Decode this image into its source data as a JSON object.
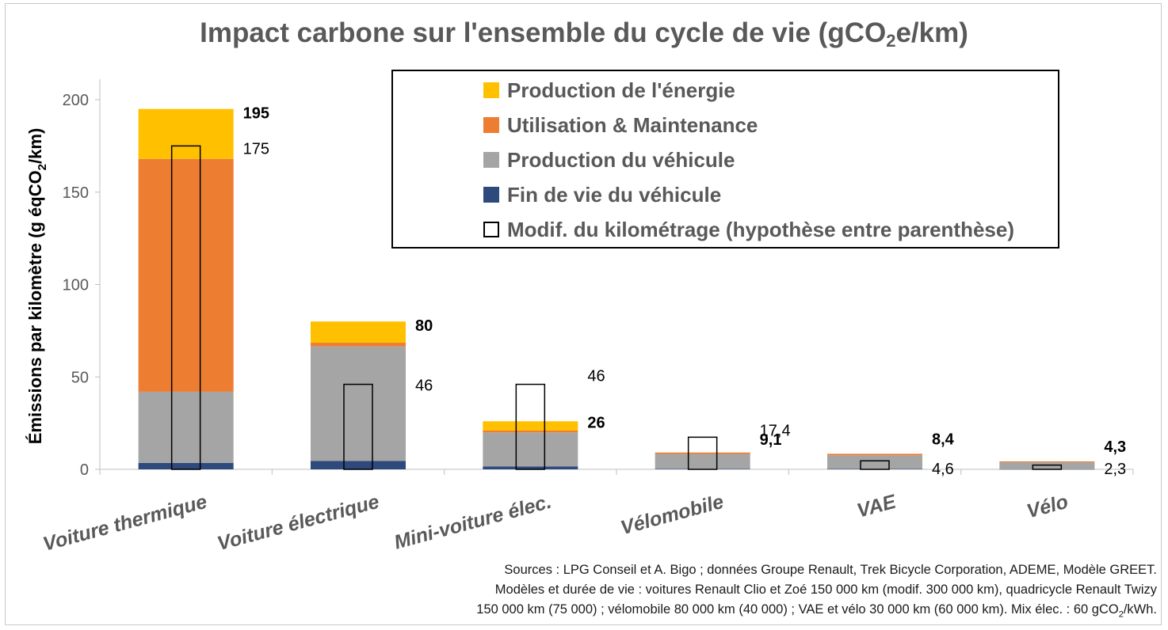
{
  "chart_data": {
    "type": "bar",
    "stacked": true,
    "title_prefix": "Impact carbone sur l'ensemble du cycle de vie (gCO",
    "title_sub": "2",
    "title_suffix": "e/km)",
    "ylabel_prefix": "Émissions par kilomètre (g éqCO",
    "ylabel_sub": "2",
    "ylabel_suffix": "/km)",
    "ylim": [
      0,
      210
    ],
    "yticks": [
      "0",
      "50",
      "100",
      "150",
      "200"
    ],
    "ytick_values": [
      0,
      50,
      100,
      150,
      200
    ],
    "categories": [
      "Voiture thermique",
      "Voiture électrique",
      "Mini-voiture élec.",
      "Vélomobile",
      "VAE",
      "Vélo"
    ],
    "series": [
      {
        "name": "Fin de vie du véhicule",
        "color": "#2e4a7d",
        "values": [
          3.5,
          4.5,
          1.5,
          0.3,
          0.3,
          0.1
        ]
      },
      {
        "name": "Production du véhicule",
        "color": "#a5a5a5",
        "values": [
          38.5,
          62,
          18.5,
          8,
          7.3,
          3.7
        ]
      },
      {
        "name": "Utilisation & Maintenance",
        "color": "#ed7d31",
        "values": [
          126,
          2,
          1,
          0.8,
          0.8,
          0.5
        ]
      },
      {
        "name": "Production de l'énergie",
        "color": "#ffc000",
        "values": [
          27,
          11.5,
          5,
          0,
          0,
          0
        ]
      }
    ],
    "totals": [
      195,
      80,
      26,
      9.1,
      8.4,
      4.3
    ],
    "total_labels": [
      "195",
      "80",
      "26",
      "9,1",
      "8,4",
      "4,3"
    ],
    "modified_values": [
      175,
      46,
      46,
      17.4,
      4.6,
      2.3
    ],
    "modified_labels": [
      "175",
      "46",
      "46",
      "17,4",
      "4,6",
      "2,3"
    ],
    "modified_series_name": "Modif. du kilométrage (hypothèse entre parenthèse)",
    "legend_placement": "top-right",
    "grid": false
  },
  "legend": [
    {
      "label": "Production de l'énergie",
      "color": "#ffc000"
    },
    {
      "label": "Utilisation & Maintenance",
      "color": "#ed7d31"
    },
    {
      "label": "Production du véhicule",
      "color": "#a5a5a5"
    },
    {
      "label": "Fin de vie du véhicule",
      "color": "#2e4a7d"
    },
    {
      "label": "Modif. du kilométrage (hypothèse entre parenthèse)",
      "color": "#ffffff"
    }
  ],
  "sources": {
    "line1": "Sources : LPG Conseil et A. Bigo ; données Groupe Renault, Trek Bicycle Corporation, ADEME, Modèle GREET.",
    "line2": "Modèles et durée de vie : voitures Renault Clio et Zoé 150 000 km (modif. 300 000 km), quadricycle Renault Twizy",
    "line3_prefix": "150 000 km (75 000) ; vélomobile 80 000 km (40 000) ; VAE et vélo 30 000 km (60 000 km). Mix élec. : 60 gCO",
    "line3_sub": "2",
    "line3_suffix": "/kWh."
  }
}
